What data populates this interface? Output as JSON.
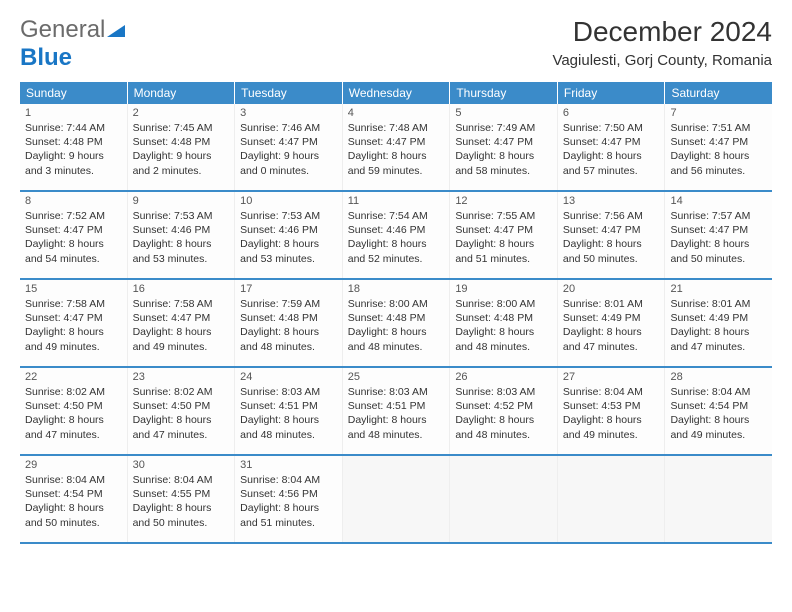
{
  "brand": {
    "part1": "General",
    "part2": "Blue"
  },
  "title": "December 2024",
  "location": "Vagiulesti, Gorj County, Romania",
  "colors": {
    "header_bg": "#3b8bc9",
    "header_fg": "#ffffff",
    "rule": "#3b8bc9",
    "text": "#333333",
    "brand_gray": "#6b6b6b",
    "brand_blue": "#1976c5"
  },
  "daynames": [
    "Sunday",
    "Monday",
    "Tuesday",
    "Wednesday",
    "Thursday",
    "Friday",
    "Saturday"
  ],
  "weeks": [
    [
      {
        "n": "1",
        "sr": "Sunrise: 7:44 AM",
        "ss": "Sunset: 4:48 PM",
        "d1": "Daylight: 9 hours",
        "d2": "and 3 minutes."
      },
      {
        "n": "2",
        "sr": "Sunrise: 7:45 AM",
        "ss": "Sunset: 4:48 PM",
        "d1": "Daylight: 9 hours",
        "d2": "and 2 minutes."
      },
      {
        "n": "3",
        "sr": "Sunrise: 7:46 AM",
        "ss": "Sunset: 4:47 PM",
        "d1": "Daylight: 9 hours",
        "d2": "and 0 minutes."
      },
      {
        "n": "4",
        "sr": "Sunrise: 7:48 AM",
        "ss": "Sunset: 4:47 PM",
        "d1": "Daylight: 8 hours",
        "d2": "and 59 minutes."
      },
      {
        "n": "5",
        "sr": "Sunrise: 7:49 AM",
        "ss": "Sunset: 4:47 PM",
        "d1": "Daylight: 8 hours",
        "d2": "and 58 minutes."
      },
      {
        "n": "6",
        "sr": "Sunrise: 7:50 AM",
        "ss": "Sunset: 4:47 PM",
        "d1": "Daylight: 8 hours",
        "d2": "and 57 minutes."
      },
      {
        "n": "7",
        "sr": "Sunrise: 7:51 AM",
        "ss": "Sunset: 4:47 PM",
        "d1": "Daylight: 8 hours",
        "d2": "and 56 minutes."
      }
    ],
    [
      {
        "n": "8",
        "sr": "Sunrise: 7:52 AM",
        "ss": "Sunset: 4:47 PM",
        "d1": "Daylight: 8 hours",
        "d2": "and 54 minutes."
      },
      {
        "n": "9",
        "sr": "Sunrise: 7:53 AM",
        "ss": "Sunset: 4:46 PM",
        "d1": "Daylight: 8 hours",
        "d2": "and 53 minutes."
      },
      {
        "n": "10",
        "sr": "Sunrise: 7:53 AM",
        "ss": "Sunset: 4:46 PM",
        "d1": "Daylight: 8 hours",
        "d2": "and 53 minutes."
      },
      {
        "n": "11",
        "sr": "Sunrise: 7:54 AM",
        "ss": "Sunset: 4:46 PM",
        "d1": "Daylight: 8 hours",
        "d2": "and 52 minutes."
      },
      {
        "n": "12",
        "sr": "Sunrise: 7:55 AM",
        "ss": "Sunset: 4:47 PM",
        "d1": "Daylight: 8 hours",
        "d2": "and 51 minutes."
      },
      {
        "n": "13",
        "sr": "Sunrise: 7:56 AM",
        "ss": "Sunset: 4:47 PM",
        "d1": "Daylight: 8 hours",
        "d2": "and 50 minutes."
      },
      {
        "n": "14",
        "sr": "Sunrise: 7:57 AM",
        "ss": "Sunset: 4:47 PM",
        "d1": "Daylight: 8 hours",
        "d2": "and 50 minutes."
      }
    ],
    [
      {
        "n": "15",
        "sr": "Sunrise: 7:58 AM",
        "ss": "Sunset: 4:47 PM",
        "d1": "Daylight: 8 hours",
        "d2": "and 49 minutes."
      },
      {
        "n": "16",
        "sr": "Sunrise: 7:58 AM",
        "ss": "Sunset: 4:47 PM",
        "d1": "Daylight: 8 hours",
        "d2": "and 49 minutes."
      },
      {
        "n": "17",
        "sr": "Sunrise: 7:59 AM",
        "ss": "Sunset: 4:48 PM",
        "d1": "Daylight: 8 hours",
        "d2": "and 48 minutes."
      },
      {
        "n": "18",
        "sr": "Sunrise: 8:00 AM",
        "ss": "Sunset: 4:48 PM",
        "d1": "Daylight: 8 hours",
        "d2": "and 48 minutes."
      },
      {
        "n": "19",
        "sr": "Sunrise: 8:00 AM",
        "ss": "Sunset: 4:48 PM",
        "d1": "Daylight: 8 hours",
        "d2": "and 48 minutes."
      },
      {
        "n": "20",
        "sr": "Sunrise: 8:01 AM",
        "ss": "Sunset: 4:49 PM",
        "d1": "Daylight: 8 hours",
        "d2": "and 47 minutes."
      },
      {
        "n": "21",
        "sr": "Sunrise: 8:01 AM",
        "ss": "Sunset: 4:49 PM",
        "d1": "Daylight: 8 hours",
        "d2": "and 47 minutes."
      }
    ],
    [
      {
        "n": "22",
        "sr": "Sunrise: 8:02 AM",
        "ss": "Sunset: 4:50 PM",
        "d1": "Daylight: 8 hours",
        "d2": "and 47 minutes."
      },
      {
        "n": "23",
        "sr": "Sunrise: 8:02 AM",
        "ss": "Sunset: 4:50 PM",
        "d1": "Daylight: 8 hours",
        "d2": "and 47 minutes."
      },
      {
        "n": "24",
        "sr": "Sunrise: 8:03 AM",
        "ss": "Sunset: 4:51 PM",
        "d1": "Daylight: 8 hours",
        "d2": "and 48 minutes."
      },
      {
        "n": "25",
        "sr": "Sunrise: 8:03 AM",
        "ss": "Sunset: 4:51 PM",
        "d1": "Daylight: 8 hours",
        "d2": "and 48 minutes."
      },
      {
        "n": "26",
        "sr": "Sunrise: 8:03 AM",
        "ss": "Sunset: 4:52 PM",
        "d1": "Daylight: 8 hours",
        "d2": "and 48 minutes."
      },
      {
        "n": "27",
        "sr": "Sunrise: 8:04 AM",
        "ss": "Sunset: 4:53 PM",
        "d1": "Daylight: 8 hours",
        "d2": "and 49 minutes."
      },
      {
        "n": "28",
        "sr": "Sunrise: 8:04 AM",
        "ss": "Sunset: 4:54 PM",
        "d1": "Daylight: 8 hours",
        "d2": "and 49 minutes."
      }
    ],
    [
      {
        "n": "29",
        "sr": "Sunrise: 8:04 AM",
        "ss": "Sunset: 4:54 PM",
        "d1": "Daylight: 8 hours",
        "d2": "and 50 minutes."
      },
      {
        "n": "30",
        "sr": "Sunrise: 8:04 AM",
        "ss": "Sunset: 4:55 PM",
        "d1": "Daylight: 8 hours",
        "d2": "and 50 minutes."
      },
      {
        "n": "31",
        "sr": "Sunrise: 8:04 AM",
        "ss": "Sunset: 4:56 PM",
        "d1": "Daylight: 8 hours",
        "d2": "and 51 minutes."
      },
      null,
      null,
      null,
      null
    ]
  ]
}
